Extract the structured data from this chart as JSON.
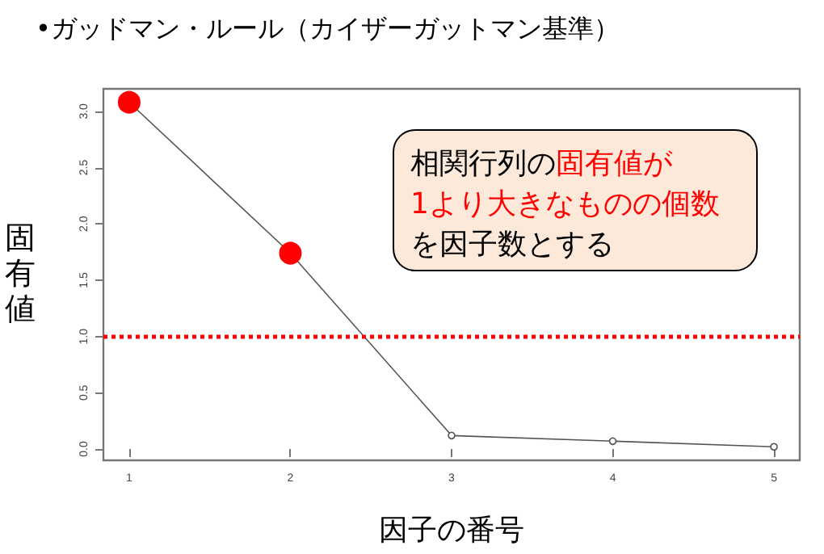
{
  "chart_data": {
    "type": "line",
    "title": "•ガッドマン・ルール（カイザーガットマン基準）",
    "xlabel": "因子の番号",
    "ylabel": "固有値",
    "x": [
      1,
      2,
      3,
      4,
      5
    ],
    "series": [
      {
        "color": "#555555",
        "colors": [
          "#ff0000",
          "#ff0000",
          "#555555",
          "#555555",
          "#555555"
        ],
        "values": [
          3.08,
          1.74,
          0.12,
          0.07,
          0.02
        ]
      }
    ],
    "xlim": [
      0.84,
      5.16
    ],
    "xticks": [
      1,
      2,
      3,
      4,
      5
    ],
    "ylim": [
      -0.1,
      3.2
    ],
    "yticks": [
      {
        "value": 0,
        "label": "0.0"
      },
      {
        "value": 0.5,
        "label": "0.5"
      },
      {
        "value": 1,
        "label": "1.0"
      },
      {
        "value": 1.5,
        "label": "1.5"
      },
      {
        "value": 2,
        "label": "2.0"
      },
      {
        "value": 2.5,
        "label": "2.5"
      },
      {
        "value": 3,
        "label": "3.0"
      }
    ],
    "ref_lines": [
      {
        "axis": "y",
        "value": 1.0,
        "color": "#ff0000",
        "line_style": "dotted"
      }
    ],
    "annotations": [
      "相関行列の",
      "固有値が",
      "1より大きなものの個数",
      "を因子数とする"
    ],
    "grid": false,
    "marker": "circle",
    "line_style": "solid"
  }
}
